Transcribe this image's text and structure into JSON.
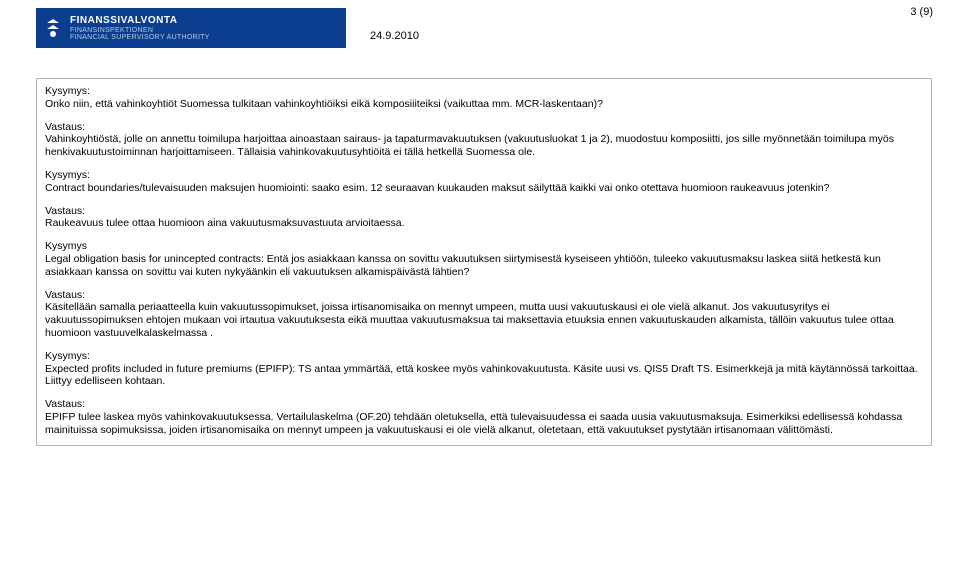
{
  "header": {
    "logo_line1": "FINANSSIVALVONTA",
    "logo_line2": "FINANSINSPEKTIONEN",
    "logo_line3": "FINANCIAL SUPERVISORY AUTHORITY",
    "date": "24.9.2010",
    "page_number": "3 (9)"
  },
  "labels": {
    "kysymys": "Kysymys:",
    "kysymys_plain": "Kysymys",
    "vastaus": "Vastaus:"
  },
  "blocks": [
    {
      "q": "Onko niin, että vahinkoyhtiöt Suomessa tulkitaan vahinkoyhtiöiksi eikä komposiiiteiksi (vaikuttaa mm. MCR-laskentaan)?",
      "a": "Vahinkoyhtiöstä, jolle on annettu toimilupa harjoittaa ainoastaan sairaus- ja tapaturmavakuutuksen (vakuutusluokat 1 ja 2), muodostuu komposiitti, jos sille myönnetään toimilupa myös henkivakuutustoiminnan harjoittamiseen. Tällaisia vahinkovakuutusyhtiöitä ei tällä hetkellä Suomessa ole."
    },
    {
      "q": "Contract boundaries/tulevaisuuden maksujen huomiointi: saako esim. 12 seuraavan kuukauden maksut säilyttää kaikki vai onko otettava huomioon raukeavuus jotenkin?",
      "a": "Raukeavuus tulee ottaa huomioon aina vakuutusmaksuvastuuta arvioitaessa."
    },
    {
      "q_plain_label": true,
      "q": "Legal obligation basis for unincepted contracts: Entä jos asiakkaan kanssa on sovittu vakuutuksen siirtymisestä kyseiseen yhtiöön, tuleeko vakuutusmaksu laskea siitä hetkestä kun asiakkaan kanssa on sovittu vai kuten nykyäänkin eli vakuutuksen alkamispäivästä lähtien?",
      "a": "Käsitellään samalla periaatteella kuin vakuutussopimukset, joissa irtisanomisaika on mennyt umpeen, mutta uusi vakuutuskausi ei ole vielä alkanut. Jos vakuutusyritys ei vakuutussopimuksen ehtojen mukaan voi irtautua vakuutuksesta eikä muuttaa vakuutusmaksua tai maksettavia etuuksia ennen vakuutuskauden alkamista, tällöin vakuutus tulee ottaa huomioon vastuuvelkalaskelmassa ."
    },
    {
      "q": "Expected profits included in future premiums (EPIFP): TS antaa ymmärtää, että koskee myös vahinkovakuutusta. Käsite uusi vs. QIS5 Draft TS. Esimerkkejä ja mitä käytännössä tarkoittaa. Liittyy edelliseen kohtaan.",
      "a": "EPIFP tulee laskea myös vahinkovakuutuksessa. Vertailulaskelma (OF.20) tehdään oletuksella, että tulevaisuudessa ei saada uusia vakuutusmaksuja. Esimerkiksi edellisessä kohdassa mainituissa sopimuksissa, joiden irtisanomisaika on mennyt umpeen ja vakuutuskausi ei ole vielä alkanut, oletetaan, että vakuutukset pystytään irtisanomaan välittömästi."
    }
  ]
}
